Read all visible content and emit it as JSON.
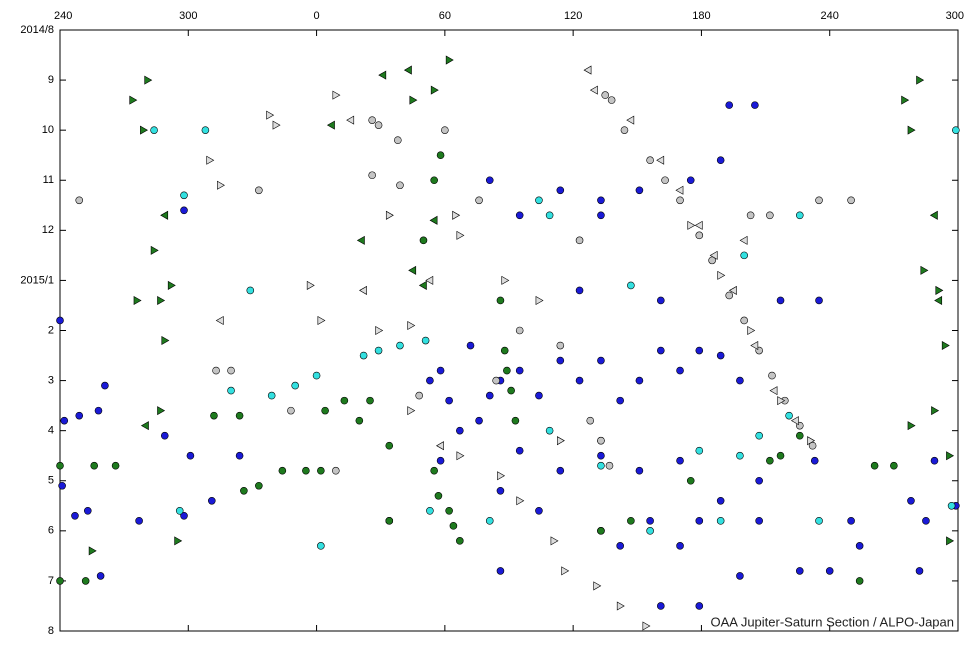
{
  "chart_data": {
    "type": "scatter",
    "credit": "OAA Jupiter-Saturn Section / ALPO-Japan",
    "xlim": [
      -120,
      300
    ],
    "xticks": [
      {
        "value": -120,
        "label": "240"
      },
      {
        "value": -60,
        "label": "300"
      },
      0,
      60,
      120,
      180,
      240,
      300
    ],
    "ylim": [
      12,
      0
    ],
    "yticks": [
      {
        "value": 0,
        "label": "2014/8"
      },
      {
        "value": 1,
        "label": "9"
      },
      {
        "value": 2,
        "label": "10"
      },
      {
        "value": 3,
        "label": "11"
      },
      {
        "value": 4,
        "label": "12"
      },
      {
        "value": 5,
        "label": "2015/1"
      },
      {
        "value": 6,
        "label": "2"
      },
      {
        "value": 7,
        "label": "3"
      },
      {
        "value": 8,
        "label": "4"
      },
      {
        "value": 9,
        "label": "5"
      },
      {
        "value": 10,
        "label": "6"
      },
      {
        "value": 11,
        "label": "7"
      },
      {
        "value": 12,
        "label": "8"
      }
    ],
    "series": [
      {
        "color": "#1a1ad6",
        "marker": "circle",
        "x": [
          -120,
          -118,
          -111,
          -102,
          -99,
          -119,
          -113,
          -107,
          -101,
          -83,
          -71,
          -59,
          -62,
          -62,
          -36,
          -49,
          53,
          62,
          67,
          76,
          81,
          86,
          95,
          104,
          114,
          123,
          133,
          142,
          151,
          161,
          170,
          179,
          189,
          198,
          95,
          114,
          133,
          151,
          170,
          189,
          207,
          104,
          133,
          156,
          179,
          207,
          250,
          81,
          114,
          133,
          151,
          175,
          189,
          205,
          193,
          95,
          133,
          217,
          235,
          123,
          161,
          198,
          226,
          240,
          161,
          179,
          142,
          170,
          86,
          86,
          58,
          72,
          278,
          299,
          289,
          285,
          282,
          254,
          233,
          58
        ],
        "values": [
          5.8,
          7.8,
          7.7,
          7.6,
          7.1,
          9.1,
          9.7,
          9.6,
          10.9,
          9.8,
          8.1,
          8.5,
          9.7,
          3.6,
          8.5,
          9.4,
          7.0,
          7.4,
          8.0,
          7.8,
          7.3,
          7.0,
          6.8,
          7.3,
          6.6,
          7.0,
          6.6,
          7.4,
          7.0,
          6.4,
          6.8,
          6.4,
          6.5,
          7.0,
          8.4,
          8.8,
          8.5,
          8.8,
          8.6,
          9.4,
          9.0,
          9.6,
          10.0,
          9.8,
          9.8,
          9.8,
          9.8,
          3.0,
          3.2,
          3.4,
          3.2,
          3.0,
          2.6,
          1.5,
          1.5,
          3.7,
          3.7,
          5.4,
          5.4,
          5.2,
          5.4,
          10.9,
          10.8,
          10.8,
          11.5,
          11.5,
          10.3,
          10.3,
          9.2,
          10.8,
          6.8,
          6.3,
          9.4,
          9.5,
          8.6,
          9.8,
          10.8,
          10.3,
          8.6,
          8.6
        ]
      },
      {
        "color": "#33e0e0",
        "marker": "circle",
        "x": [
          -76,
          -52,
          -62,
          -31,
          -40,
          -21,
          -10,
          0,
          2,
          22,
          29,
          39,
          51,
          34,
          53,
          81,
          104,
          109,
          147,
          109,
          133,
          179,
          198,
          207,
          221,
          226,
          200,
          189,
          299,
          297,
          -64,
          156,
          133,
          235
        ],
        "values": [
          2.0,
          2.0,
          3.3,
          5.2,
          7.2,
          7.3,
          7.1,
          6.9,
          10.3,
          6.5,
          6.4,
          6.3,
          6.2,
          9.8,
          9.6,
          9.8,
          3.4,
          3.7,
          5.1,
          8.0,
          8.2,
          8.4,
          8.5,
          8.1,
          7.7,
          3.7,
          4.5,
          9.8,
          2.0,
          9.5,
          9.6,
          10.0,
          8.7,
          9.8
        ]
      },
      {
        "color": "#c4c4c4",
        "marker": "circle",
        "x": [
          -111,
          -27,
          -47,
          -40,
          -12,
          9,
          26,
          29,
          38,
          26,
          39,
          60,
          76,
          123,
          95,
          114,
          84,
          128,
          133,
          137,
          203,
          212,
          235,
          250,
          48,
          135,
          138,
          144,
          156,
          163,
          170,
          179,
          185,
          193,
          200,
          207,
          213,
          219,
          226,
          232
        ],
        "values": [
          3.4,
          3.2,
          6.8,
          6.8,
          7.6,
          8.8,
          1.8,
          1.9,
          2.2,
          2.9,
          3.1,
          2.0,
          3.4,
          4.2,
          6.0,
          6.3,
          7.0,
          7.8,
          8.2,
          8.7,
          3.7,
          3.7,
          3.4,
          3.4,
          7.3,
          1.3,
          1.4,
          2.0,
          2.6,
          3.0,
          3.4,
          4.1,
          4.6,
          5.3,
          5.8,
          6.4,
          6.9,
          7.4,
          7.9,
          8.3
        ]
      },
      {
        "color": "#dcdcdc",
        "marker": "triangle-right",
        "x": [
          -22,
          -19,
          -50,
          -45,
          2,
          9,
          -3,
          29,
          44,
          67,
          86,
          88,
          104,
          95,
          111,
          116,
          131,
          142,
          154,
          67,
          65,
          34,
          44,
          114,
          175,
          189,
          203,
          217,
          231
        ],
        "values": [
          1.7,
          1.9,
          2.6,
          3.1,
          5.8,
          1.3,
          5.1,
          6.0,
          7.6,
          8.5,
          8.9,
          5.0,
          5.4,
          9.4,
          10.2,
          10.8,
          11.1,
          11.5,
          11.9,
          4.1,
          3.7,
          3.7,
          5.9,
          8.2,
          3.9,
          4.9,
          6.0,
          7.4,
          8.2
        ]
      },
      {
        "color": "#dcdcdc",
        "marker": "triangle-left",
        "x": [
          127,
          130,
          147,
          161,
          170,
          179,
          186,
          195,
          200,
          205,
          214,
          224,
          -45,
          58,
          22,
          16,
          53
        ],
        "values": [
          0.8,
          1.2,
          1.8,
          2.6,
          3.2,
          3.9,
          4.5,
          5.2,
          4.2,
          6.3,
          7.2,
          7.8,
          5.8,
          8.3,
          5.2,
          1.8,
          5.0
        ]
      },
      {
        "color": "#1e7a1e",
        "marker": "triangle-right",
        "x": [
          -86,
          -79,
          -81,
          -76,
          -84,
          -73,
          -68,
          -71,
          -73,
          -65,
          -105,
          45,
          62,
          55,
          275,
          282,
          278,
          284,
          291,
          289,
          294,
          296,
          278,
          296
        ],
        "values": [
          1.4,
          1.0,
          2.0,
          4.4,
          5.4,
          5.4,
          5.1,
          6.2,
          7.6,
          10.2,
          10.4,
          1.4,
          0.6,
          1.2,
          1.4,
          1.0,
          2.0,
          4.8,
          5.2,
          7.6,
          6.3,
          10.2,
          7.9,
          8.5
        ]
      },
      {
        "color": "#1e7a1e",
        "marker": "triangle-left",
        "x": [
          -71,
          -80,
          43,
          31,
          21,
          45,
          50,
          55,
          289,
          291,
          7
        ],
        "values": [
          3.7,
          7.9,
          0.8,
          0.9,
          4.2,
          4.8,
          5.1,
          3.8,
          3.7,
          5.4,
          1.9
        ]
      },
      {
        "color": "#1e7a1e",
        "marker": "circle",
        "x": [
          -120,
          -120,
          -108,
          -104,
          -94,
          -48,
          -36,
          -34,
          -27,
          -16,
          -5,
          2,
          4,
          13,
          20,
          25,
          34,
          34,
          55,
          57,
          62,
          64,
          67,
          58,
          55,
          50,
          86,
          88,
          89,
          91,
          93,
          212,
          217,
          175,
          133,
          147,
          254,
          261,
          270,
          226
        ],
        "values": [
          8.7,
          11.0,
          11.0,
          8.7,
          8.7,
          7.7,
          7.7,
          9.2,
          9.1,
          8.8,
          8.8,
          8.8,
          7.6,
          7.4,
          7.8,
          7.4,
          9.8,
          8.3,
          8.8,
          9.3,
          9.6,
          9.9,
          10.2,
          2.5,
          3.0,
          4.2,
          5.4,
          6.4,
          6.8,
          7.2,
          7.8,
          8.6,
          8.5,
          9.0,
          10.0,
          9.8,
          11.0,
          8.7,
          8.7,
          8.1
        ]
      }
    ]
  }
}
